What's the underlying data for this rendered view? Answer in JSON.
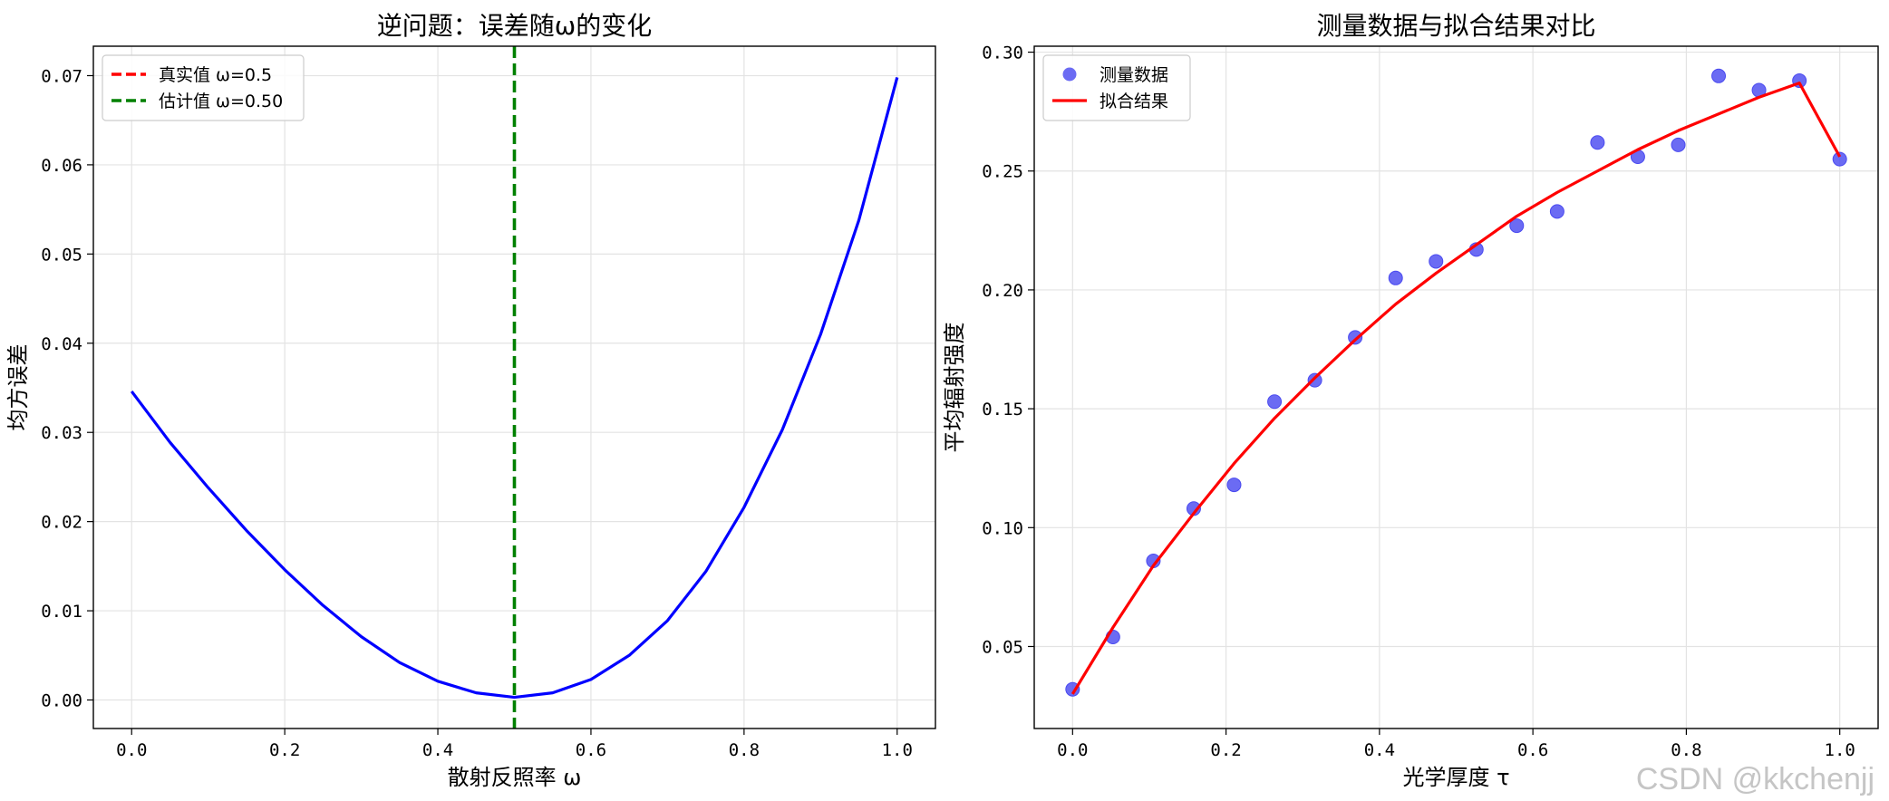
{
  "watermark": "CSDN @kkchenjj",
  "chart_data": [
    {
      "type": "line",
      "title": "逆问题：误差随ω的变化",
      "xlabel": "散射反照率 ω",
      "ylabel": "均方误差",
      "xlim": [
        -0.05,
        1.05
      ],
      "ylim": [
        -0.0032,
        0.0733
      ],
      "xticks": [
        0.0,
        0.2,
        0.4,
        0.6,
        0.8,
        1.0
      ],
      "xtick_labels": [
        "0.0",
        "0.2",
        "0.4",
        "0.6",
        "0.8",
        "1.0"
      ],
      "yticks": [
        0.0,
        0.01,
        0.02,
        0.03,
        0.04,
        0.05,
        0.06,
        0.07
      ],
      "ytick_labels": [
        "0.00",
        "0.01",
        "0.02",
        "0.03",
        "0.04",
        "0.05",
        "0.06",
        "0.07"
      ],
      "grid": true,
      "legend_position": "top-left",
      "series": [
        {
          "color": "#0000ff",
          "x": [
            0.0,
            0.05,
            0.1,
            0.15,
            0.2,
            0.25,
            0.3,
            0.35,
            0.4,
            0.45,
            0.5,
            0.55,
            0.6,
            0.65,
            0.7,
            0.75,
            0.8,
            0.85,
            0.9,
            0.95,
            1.0
          ],
          "y": [
            0.0346,
            0.0289,
            0.0238,
            0.019,
            0.0146,
            0.0106,
            0.0071,
            0.0042,
            0.0021,
            0.0008,
            0.0003,
            0.0008,
            0.0023,
            0.005,
            0.0089,
            0.0144,
            0.0216,
            0.0303,
            0.041,
            0.0538,
            0.0698
          ]
        }
      ],
      "vlines": [
        {
          "name": "真实值 ω=0.5",
          "x": 0.5,
          "color": "#ff0000",
          "style": "dashed",
          "visible_line": false
        },
        {
          "name": "估计值 ω=0.50",
          "x": 0.5,
          "color": "#008000",
          "style": "dashed",
          "visible_line": true
        }
      ]
    },
    {
      "type": "scatter",
      "title": "测量数据与拟合结果对比",
      "xlabel": "光学厚度 τ",
      "ylabel": "平均辐射强度",
      "xlim": [
        -0.05,
        1.05
      ],
      "ylim": [
        0.0155,
        0.3025
      ],
      "xticks": [
        0.0,
        0.2,
        0.4,
        0.6,
        0.8,
        1.0
      ],
      "xtick_labels": [
        "0.0",
        "0.2",
        "0.4",
        "0.6",
        "0.8",
        "1.0"
      ],
      "yticks": [
        0.05,
        0.1,
        0.15,
        0.2,
        0.25,
        0.3
      ],
      "ytick_labels": [
        "0.05",
        "0.10",
        "0.15",
        "0.20",
        "0.25",
        "0.30"
      ],
      "grid": true,
      "legend_position": "top-left",
      "series": [
        {
          "name": "测量数据",
          "kind": "scatter",
          "color": "#4a4af0",
          "x": [
            0.0,
            0.0526,
            0.1053,
            0.1579,
            0.2105,
            0.2632,
            0.3158,
            0.3684,
            0.4211,
            0.4737,
            0.5263,
            0.5789,
            0.6316,
            0.6842,
            0.7368,
            0.7895,
            0.8421,
            0.8947,
            0.9474,
            1.0
          ],
          "y": [
            0.032,
            0.054,
            0.086,
            0.108,
            0.118,
            0.153,
            0.162,
            0.18,
            0.205,
            0.212,
            0.217,
            0.227,
            0.233,
            0.262,
            0.256,
            0.261,
            0.29,
            0.284,
            0.288,
            0.255
          ]
        },
        {
          "name": "拟合结果",
          "kind": "line",
          "color": "#ff0000",
          "x": [
            0.0,
            0.0526,
            0.1053,
            0.1579,
            0.2105,
            0.2632,
            0.3158,
            0.3684,
            0.4211,
            0.4737,
            0.5263,
            0.5789,
            0.6316,
            0.6842,
            0.7368,
            0.7895,
            0.8421,
            0.8947,
            0.9474,
            1.0
          ],
          "y": [
            0.03,
            0.058,
            0.084,
            0.106,
            0.127,
            0.146,
            0.163,
            0.179,
            0.194,
            0.207,
            0.219,
            0.231,
            0.241,
            0.25,
            0.259,
            0.267,
            0.274,
            0.281,
            0.287,
            0.256
          ]
        }
      ]
    }
  ]
}
